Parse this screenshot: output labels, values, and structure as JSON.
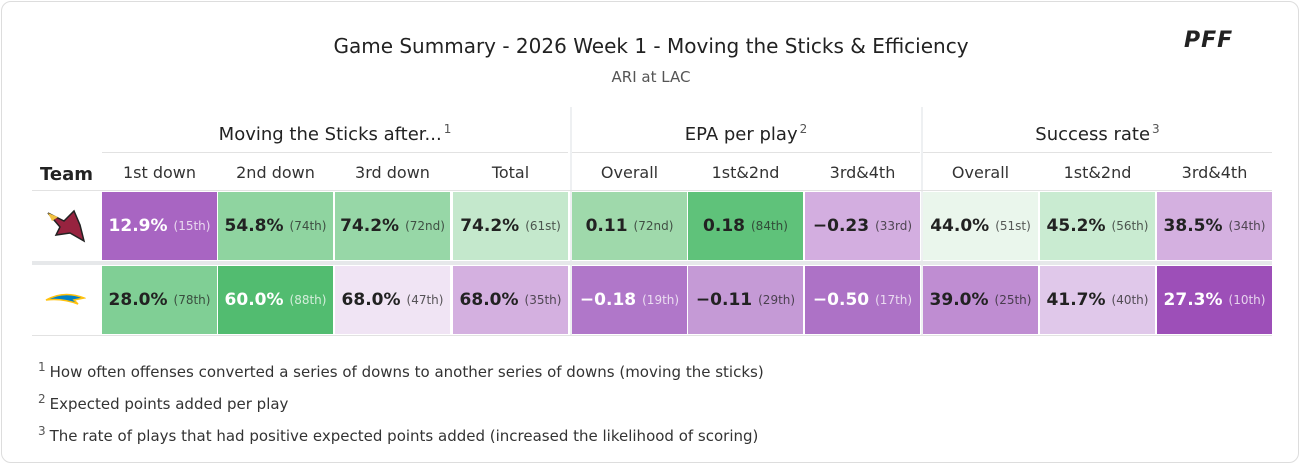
{
  "header": {
    "title": "Game Summary - 2026 Week 1 - Moving the Sticks & Efficiency",
    "subtitle": "ARI at LAC",
    "brand": "PFF"
  },
  "table": {
    "groups": [
      {
        "label": "Moving the Sticks after...",
        "note": "1",
        "span": 4
      },
      {
        "label": "EPA per play",
        "note": "2",
        "span": 3
      },
      {
        "label": "Success rate",
        "note": "3",
        "span": 3
      }
    ],
    "team_header": "Team",
    "columns": [
      "1st down",
      "2nd down",
      "3rd down",
      "Total",
      "Overall",
      "1st&2nd",
      "3rd&4th",
      "Overall",
      "1st&2nd",
      "3rd&4th"
    ],
    "rows": [
      [
        {
          "value": "12.9%",
          "rank": "(15th)",
          "color": "#a865c2"
        },
        {
          "value": "54.8%",
          "rank": "(74th)",
          "color": "#8fd4a0"
        },
        {
          "value": "74.2%",
          "rank": "(72nd)",
          "color": "#97d7a7"
        },
        {
          "value": "74.2%",
          "rank": "(61st)",
          "color": "#c4e8cc"
        },
        {
          "value": "0.11",
          "rank": "(72nd)",
          "color": "#9fd9ab"
        },
        {
          "value": "0.18",
          "rank": "(84th)",
          "color": "#5fc27a"
        },
        {
          "value": "−0.23",
          "rank": "(33rd)",
          "color": "#d3aee0"
        },
        {
          "value": "44.0%",
          "rank": "(51st)",
          "color": "#eaf6ec"
        },
        {
          "value": "45.2%",
          "rank": "(56th)",
          "color": "#c9ebd1"
        },
        {
          "value": "38.5%",
          "rank": "(34th)",
          "color": "#d4b0e0"
        }
      ],
      [
        {
          "value": "28.0%",
          "rank": "(78th)",
          "color": "#80cf95"
        },
        {
          "value": "60.0%",
          "rank": "(88th)",
          "color": "#52bc70"
        },
        {
          "value": "68.0%",
          "rank": "(47th)",
          "color": "#f0e4f4"
        },
        {
          "value": "68.0%",
          "rank": "(35th)",
          "color": "#d4b0e0"
        },
        {
          "value": "−0.18",
          "rank": "(19th)",
          "color": "#b077c9"
        },
        {
          "value": "−0.11",
          "rank": "(29th)",
          "color": "#c59ad6"
        },
        {
          "value": "−0.50",
          "rank": "(17th)",
          "color": "#ad72c6"
        },
        {
          "value": "39.0%",
          "rank": "(25th)",
          "color": "#bf8dd2"
        },
        {
          "value": "41.7%",
          "rank": "(40th)",
          "color": "#e0c8ea"
        },
        {
          "value": "27.3%",
          "rank": "(10th)",
          "color": "#9d4fb8"
        }
      ]
    ]
  },
  "footnotes": [
    {
      "mark": "1",
      "text": "How often offenses converted a series of downs to another series of downs (moving the sticks)"
    },
    {
      "mark": "2",
      "text": "Expected points added per play"
    },
    {
      "mark": "3",
      "text": "The rate of plays that had positive expected points added (increased the likelihood of scoring)"
    }
  ]
}
